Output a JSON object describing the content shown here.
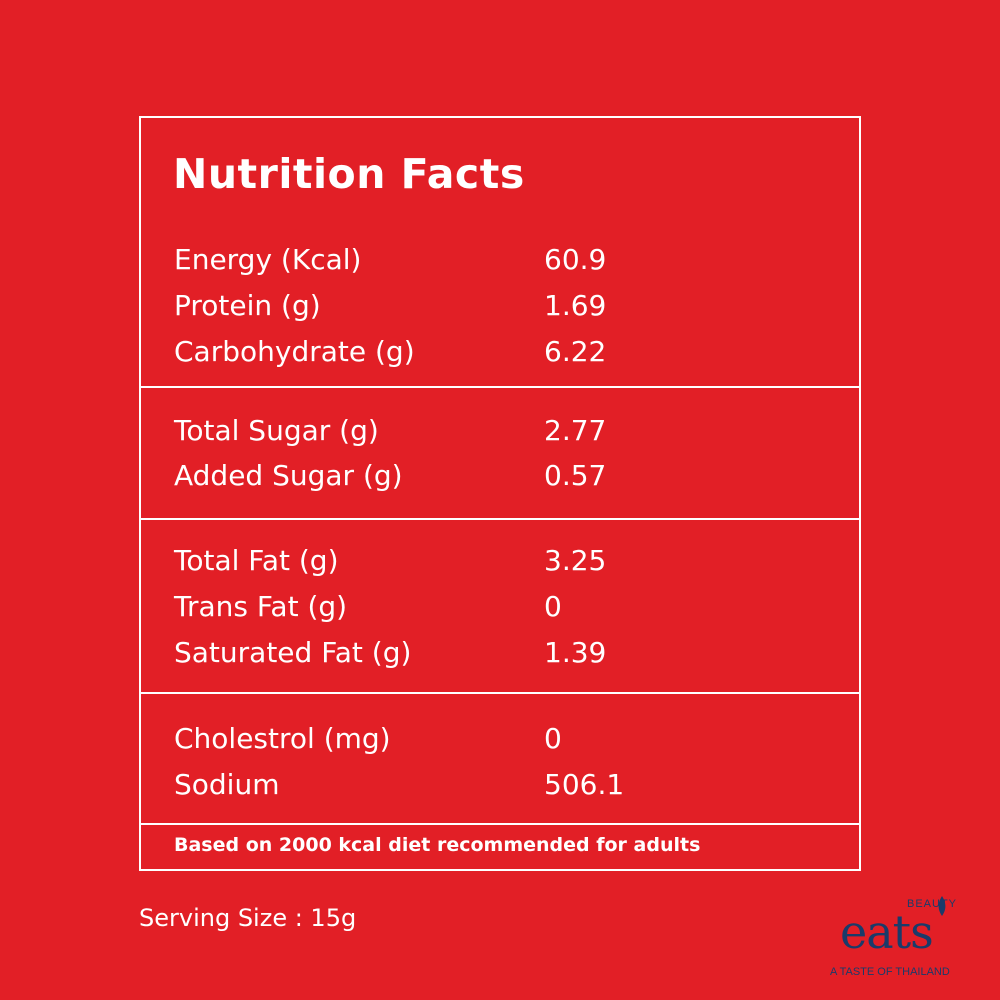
{
  "panel": {
    "title": "Nutrition Facts",
    "groups": [
      {
        "rows": [
          {
            "label": "Energy (Kcal)",
            "value": "60.9"
          },
          {
            "label": "Protein (g)",
            "value": "1.69"
          },
          {
            "label": "Carbohydrate (g)",
            "value": "6.22"
          }
        ]
      },
      {
        "rows": [
          {
            "label": "Total Sugar (g)",
            "value": "2.77"
          },
          {
            "label": "Added Sugar (g)",
            "value": "0.57"
          }
        ]
      },
      {
        "rows": [
          {
            "label": "Total Fat (g)",
            "value": "3.25"
          },
          {
            "label": "Trans Fat (g)",
            "value": "0"
          },
          {
            "label": "Saturated Fat (g)",
            "value": "1.39"
          }
        ]
      },
      {
        "rows": [
          {
            "label": "Cholestrol (mg)",
            "value": "0"
          },
          {
            "label": "Sodium",
            "value": "506.1"
          }
        ]
      }
    ],
    "footnote": "Based on 2000 kcal diet recommended for adults"
  },
  "serving_size": "Serving Size : 15g",
  "logo": {
    "top_word": "BEAUTY",
    "main_word": "eats",
    "tagline": "A TASTE OF THAILAND",
    "icon": "leaf-icon"
  },
  "colors": {
    "background": "#e21f26",
    "text": "#ffffff",
    "logo": "#1a3b6a"
  }
}
